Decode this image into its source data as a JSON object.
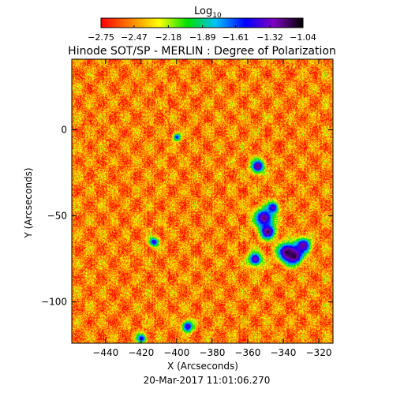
{
  "chart_data": {
    "type": "heatmap",
    "title": "Hinode SOT/SP - MERLIN : Degree of Polarization",
    "timestamp": "20-Mar-2017 11:01:06.270",
    "xlabel": "X (Arcseconds)",
    "ylabel": "Y (Arcseconds)",
    "xlim": [
      -459,
      -312
    ],
    "ylim": [
      -124,
      41
    ],
    "x_ticks": [
      -440,
      -420,
      -400,
      -380,
      -360,
      -340,
      -320
    ],
    "y_ticks": [
      0,
      -50,
      -100
    ],
    "x_tick_labels": [
      "−440",
      "−420",
      "−400",
      "−380",
      "−360",
      "−340",
      "−320"
    ],
    "y_tick_labels": [
      "0",
      "−50",
      "−100"
    ],
    "colorbar": {
      "label_base": "Log",
      "label_sub": "10",
      "range": [
        -2.75,
        -1.04
      ],
      "tick_values": [
        -2.75,
        -2.47,
        -2.18,
        -1.89,
        -1.61,
        -1.32,
        -1.04
      ],
      "tick_labels": [
        "−2.75",
        "−2.47",
        "−2.18",
        "−1.89",
        "−1.61",
        "−1.32",
        "−1.04"
      ],
      "colors": [
        "#ff0000",
        "#ff7f00",
        "#ffff00",
        "#00e000",
        "#00c0ff",
        "#0000ff",
        "#8000c0",
        "#000000"
      ]
    },
    "background_value": -2.5,
    "features": [
      {
        "x": -354.5,
        "y": -21,
        "r": 3.5,
        "value": -1.2
      },
      {
        "x": -351,
        "y": -51,
        "r": 5,
        "value": -1.2
      },
      {
        "x": -349,
        "y": -59,
        "r": 4,
        "value": -1.15
      },
      {
        "x": -346,
        "y": -45,
        "r": 3,
        "value": -1.3
      },
      {
        "x": -338,
        "y": -71,
        "r": 5,
        "value": -1.1
      },
      {
        "x": -334,
        "y": -73,
        "r": 4.5,
        "value": -1.1
      },
      {
        "x": -329,
        "y": -67,
        "r": 4,
        "value": -1.2
      },
      {
        "x": -356,
        "y": -75,
        "r": 3.5,
        "value": -1.25
      },
      {
        "x": -400,
        "y": -4,
        "r": 2,
        "value": -1.5
      },
      {
        "x": -413,
        "y": -65,
        "r": 2.5,
        "value": -1.4
      },
      {
        "x": -394,
        "y": -114,
        "r": 3,
        "value": -1.35
      },
      {
        "x": -420,
        "y": -121,
        "r": 2.5,
        "value": -1.45
      }
    ]
  }
}
